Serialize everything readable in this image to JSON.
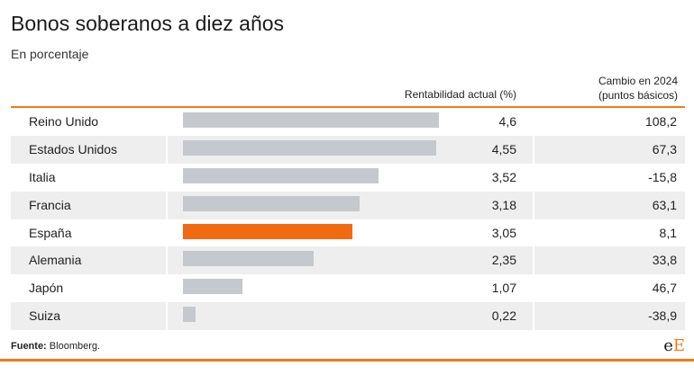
{
  "title": "Bonos soberanos a diez años",
  "subtitle": "En porcentaje",
  "columns": {
    "rentabilidad": "Rentabilidad actual (%)",
    "cambio_line1": "Cambio en 2024",
    "cambio_line2": "(puntos básicos)"
  },
  "source": {
    "label": "Fuente:",
    "text": "Bloomberg."
  },
  "logo": {
    "e1": "e",
    "e2": "E"
  },
  "colors": {
    "accent": "#f07a1a",
    "bar": "#c5c8cc",
    "highlight_bar": "#f26a10"
  },
  "chart_data": {
    "type": "bar",
    "orientation": "horizontal",
    "title": "Bonos soberanos a diez años",
    "subtitle": "En porcentaje",
    "categories": [
      "Reino Unido",
      "Estados Unidos",
      "Italia",
      "Francia",
      "España",
      "Alemania",
      "Japón",
      "Suiza"
    ],
    "series": [
      {
        "name": "Rentabilidad actual (%)",
        "values": [
          4.6,
          4.55,
          3.52,
          3.18,
          3.05,
          2.35,
          1.07,
          0.22
        ]
      },
      {
        "name": "Cambio en 2024 (puntos básicos)",
        "values": [
          108.2,
          67.3,
          -15.8,
          63.1,
          8.1,
          33.8,
          46.7,
          -38.9
        ]
      }
    ],
    "highlighted_category": "España",
    "xlim": [
      0,
      4.6
    ],
    "rows": [
      {
        "country": "Reino Unido",
        "value": "4,6",
        "change": "108,2"
      },
      {
        "country": "Estados Unidos",
        "value": "4,55",
        "change": "67,3"
      },
      {
        "country": "Italia",
        "value": "3,52",
        "change": "-15,8"
      },
      {
        "country": "Francia",
        "value": "3,18",
        "change": "63,1"
      },
      {
        "country": "España",
        "value": "3,05",
        "change": "8,1"
      },
      {
        "country": "Alemania",
        "value": "2,35",
        "change": "33,8"
      },
      {
        "country": "Japón",
        "value": "1,07",
        "change": "46,7"
      },
      {
        "country": "Suiza",
        "value": "0,22",
        "change": "-38,9"
      }
    ]
  }
}
